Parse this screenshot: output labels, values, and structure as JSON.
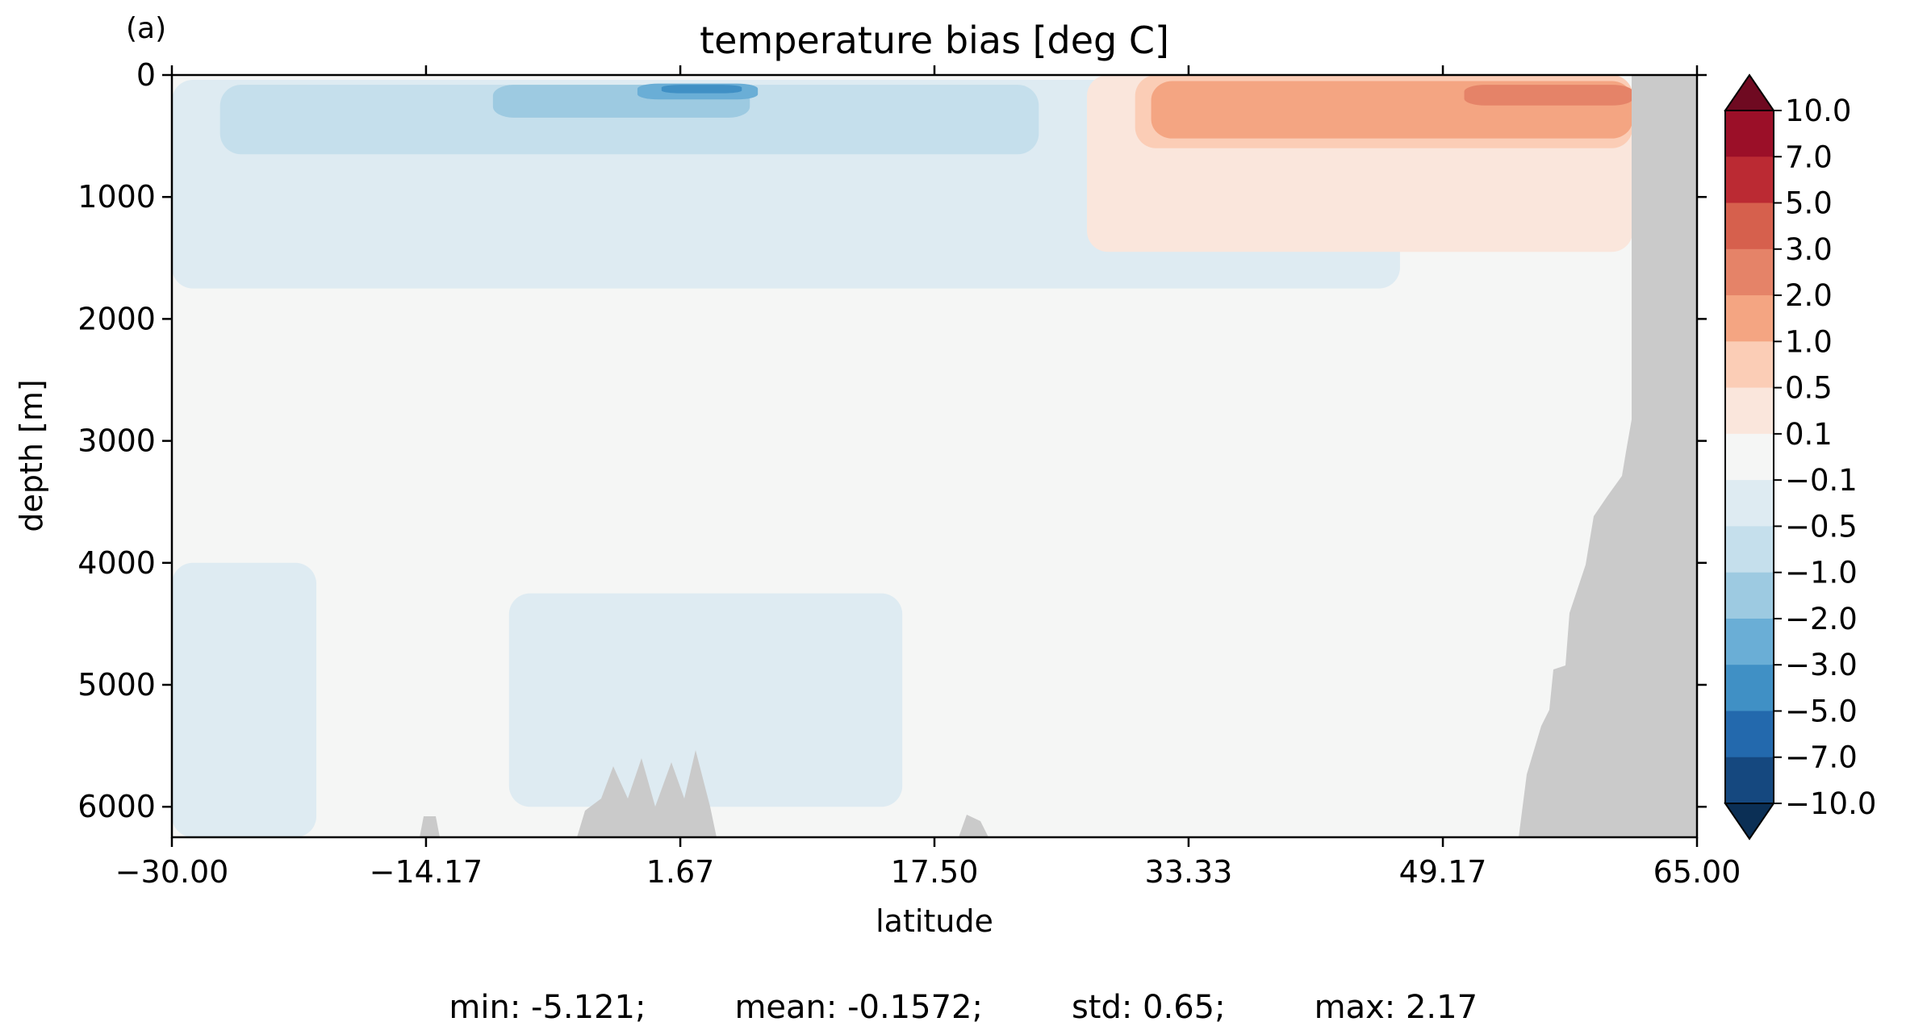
{
  "panel_label": "(a)",
  "chart_data": {
    "type": "heatmap",
    "title": "temperature bias [deg C]",
    "xlabel": "latitude",
    "ylabel": "depth [m]",
    "xlim": [
      -30.0,
      65.0
    ],
    "ylim": [
      6250,
      0
    ],
    "x_ticks": [
      "−30.00",
      "−14.17",
      "1.67",
      "17.50",
      "33.33",
      "49.17",
      "65.00"
    ],
    "x_tick_values": [
      -30.0,
      -14.17,
      1.67,
      17.5,
      33.33,
      49.17,
      65.0
    ],
    "y_ticks": [
      "0",
      "1000",
      "2000",
      "3000",
      "4000",
      "5000",
      "6000"
    ],
    "y_tick_values": [
      0,
      1000,
      2000,
      3000,
      4000,
      5000,
      6000
    ],
    "colorbar": {
      "levels": [
        "10.0",
        "7.0",
        "5.0",
        "3.0",
        "2.0",
        "1.0",
        "0.5",
        "0.1",
        "−0.1",
        "−0.5",
        "−1.0",
        "−2.0",
        "−3.0",
        "−5.0",
        "−7.0",
        "−10.0"
      ],
      "colors": [
        "#6f0a21",
        "#9b0f28",
        "#bb2a33",
        "#d6604d",
        "#e58368",
        "#f4a582",
        "#fbcdb6",
        "#fae6dc",
        "#f5f6f5",
        "#deebf2",
        "#c5dfec",
        "#9dcae1",
        "#6aaed6",
        "#4090c5",
        "#2369ad",
        "#15487f",
        "#0b2f55"
      ],
      "extend": "both"
    },
    "land_color": "#cacaca",
    "background_color": "#f5f6f5",
    "regions": [
      {
        "level": "-0.1 to -0.5",
        "color": "#deebf2",
        "lat": [
          -30.0,
          46.5
        ],
        "depth": [
          40,
          1750
        ]
      },
      {
        "level": "-0.1 to -0.5",
        "color": "#deebf2",
        "lat": [
          -30.0,
          -21.0
        ],
        "depth": [
          4000,
          6250
        ]
      },
      {
        "level": "-0.1 to -0.5",
        "color": "#deebf2",
        "lat": [
          -9.0,
          15.5
        ],
        "depth": [
          4250,
          6000
        ]
      },
      {
        "level": "-0.5 to -1.0",
        "color": "#c5dfec",
        "lat": [
          -27.0,
          24.0
        ],
        "depth": [
          80,
          650
        ]
      },
      {
        "level": "-1.0 to -2.0",
        "color": "#9dcae1",
        "lat": [
          -10.0,
          6.0
        ],
        "depth": [
          80,
          350
        ]
      },
      {
        "level": "-2.0 to -3.0",
        "color": "#6aaed6",
        "lat": [
          -1.0,
          6.5
        ],
        "depth": [
          70,
          200
        ]
      },
      {
        "level": "-3.0 to -5.0",
        "color": "#4090c5",
        "lat": [
          0.5,
          5.5
        ],
        "depth": [
          80,
          150
        ]
      },
      {
        "level": "0.1 to 0.5",
        "color": "#fae6dc",
        "lat": [
          27.0,
          61.0
        ],
        "depth": [
          0,
          1450
        ]
      },
      {
        "level": "0.5 to 1.0",
        "color": "#fbcdb6",
        "lat": [
          30.0,
          61.0
        ],
        "depth": [
          0,
          600
        ]
      },
      {
        "level": "1.0 to 2.0",
        "color": "#f4a582",
        "lat": [
          31.0,
          61.0
        ],
        "depth": [
          50,
          520
        ]
      },
      {
        "level": "2.0 to 3.0",
        "color": "#e58368",
        "lat": [
          50.5,
          61.0
        ],
        "depth": [
          80,
          250
        ]
      }
    ]
  },
  "stats": {
    "min": "min: -5.121;",
    "mean": "mean: -0.1572;",
    "std": "std: 0.65;",
    "max": "max: 2.17"
  }
}
